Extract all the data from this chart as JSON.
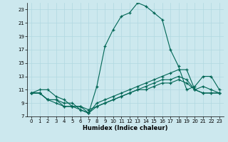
{
  "bg_color": "#cce8ee",
  "line_color": "#006655",
  "grid_color": "#b0d8e0",
  "xlabel": "Humidex (Indice chaleur)",
  "ylim": [
    7,
    24
  ],
  "xlim": [
    -0.5,
    23.5
  ],
  "yticks": [
    7,
    9,
    11,
    13,
    15,
    17,
    19,
    21,
    23
  ],
  "xticks": [
    0,
    1,
    2,
    3,
    4,
    5,
    6,
    7,
    8,
    9,
    10,
    11,
    12,
    13,
    14,
    15,
    16,
    17,
    18,
    19,
    20,
    21,
    22,
    23
  ],
  "series": [
    {
      "x": [
        0,
        1,
        2,
        3,
        4,
        5,
        6,
        7,
        8,
        9,
        10,
        11,
        12,
        13,
        14,
        15,
        16,
        17,
        18,
        19,
        20,
        21,
        22,
        23
      ],
      "y": [
        10.5,
        11,
        11,
        10,
        9.5,
        8.5,
        8.5,
        7.5,
        11.5,
        17.5,
        20,
        22,
        22.5,
        24,
        23.5,
        22.5,
        21.5,
        17,
        14.5,
        11,
        11.5,
        13,
        13,
        11
      ]
    },
    {
      "x": [
        0,
        1,
        2,
        3,
        4,
        5,
        6,
        7,
        8,
        9,
        10,
        11,
        12,
        13,
        14,
        15,
        16,
        17,
        18,
        19,
        20,
        21,
        22,
        23
      ],
      "y": [
        10.5,
        10.5,
        9.5,
        9.5,
        9,
        9,
        8,
        7.5,
        9,
        9.5,
        10,
        10.5,
        11,
        11.5,
        12,
        12.5,
        13,
        13.5,
        14,
        14,
        11,
        11.5,
        11,
        10.5
      ]
    },
    {
      "x": [
        0,
        1,
        2,
        3,
        4,
        5,
        6,
        7,
        8,
        9,
        10,
        11,
        12,
        13,
        14,
        15,
        16,
        17,
        18,
        19,
        20,
        21,
        22,
        23
      ],
      "y": [
        10.5,
        10.5,
        9.5,
        9,
        8.5,
        8.5,
        8.5,
        8,
        8.5,
        9,
        9.5,
        10,
        10.5,
        11,
        11.5,
        12,
        12.5,
        12.5,
        13,
        12.5,
        11,
        10.5,
        10.5,
        10.5
      ]
    },
    {
      "x": [
        0,
        1,
        2,
        3,
        4,
        5,
        6,
        7,
        8,
        9,
        10,
        11,
        12,
        13,
        14,
        15,
        16,
        17,
        18,
        19,
        20,
        21,
        22,
        23
      ],
      "y": [
        10.5,
        10.5,
        9.5,
        9.5,
        8.5,
        8.5,
        8,
        7.5,
        8.5,
        9,
        9.5,
        10,
        10.5,
        11,
        11,
        11.5,
        12,
        12,
        12.5,
        12,
        11,
        10.5,
        10.5,
        10.5
      ]
    }
  ]
}
